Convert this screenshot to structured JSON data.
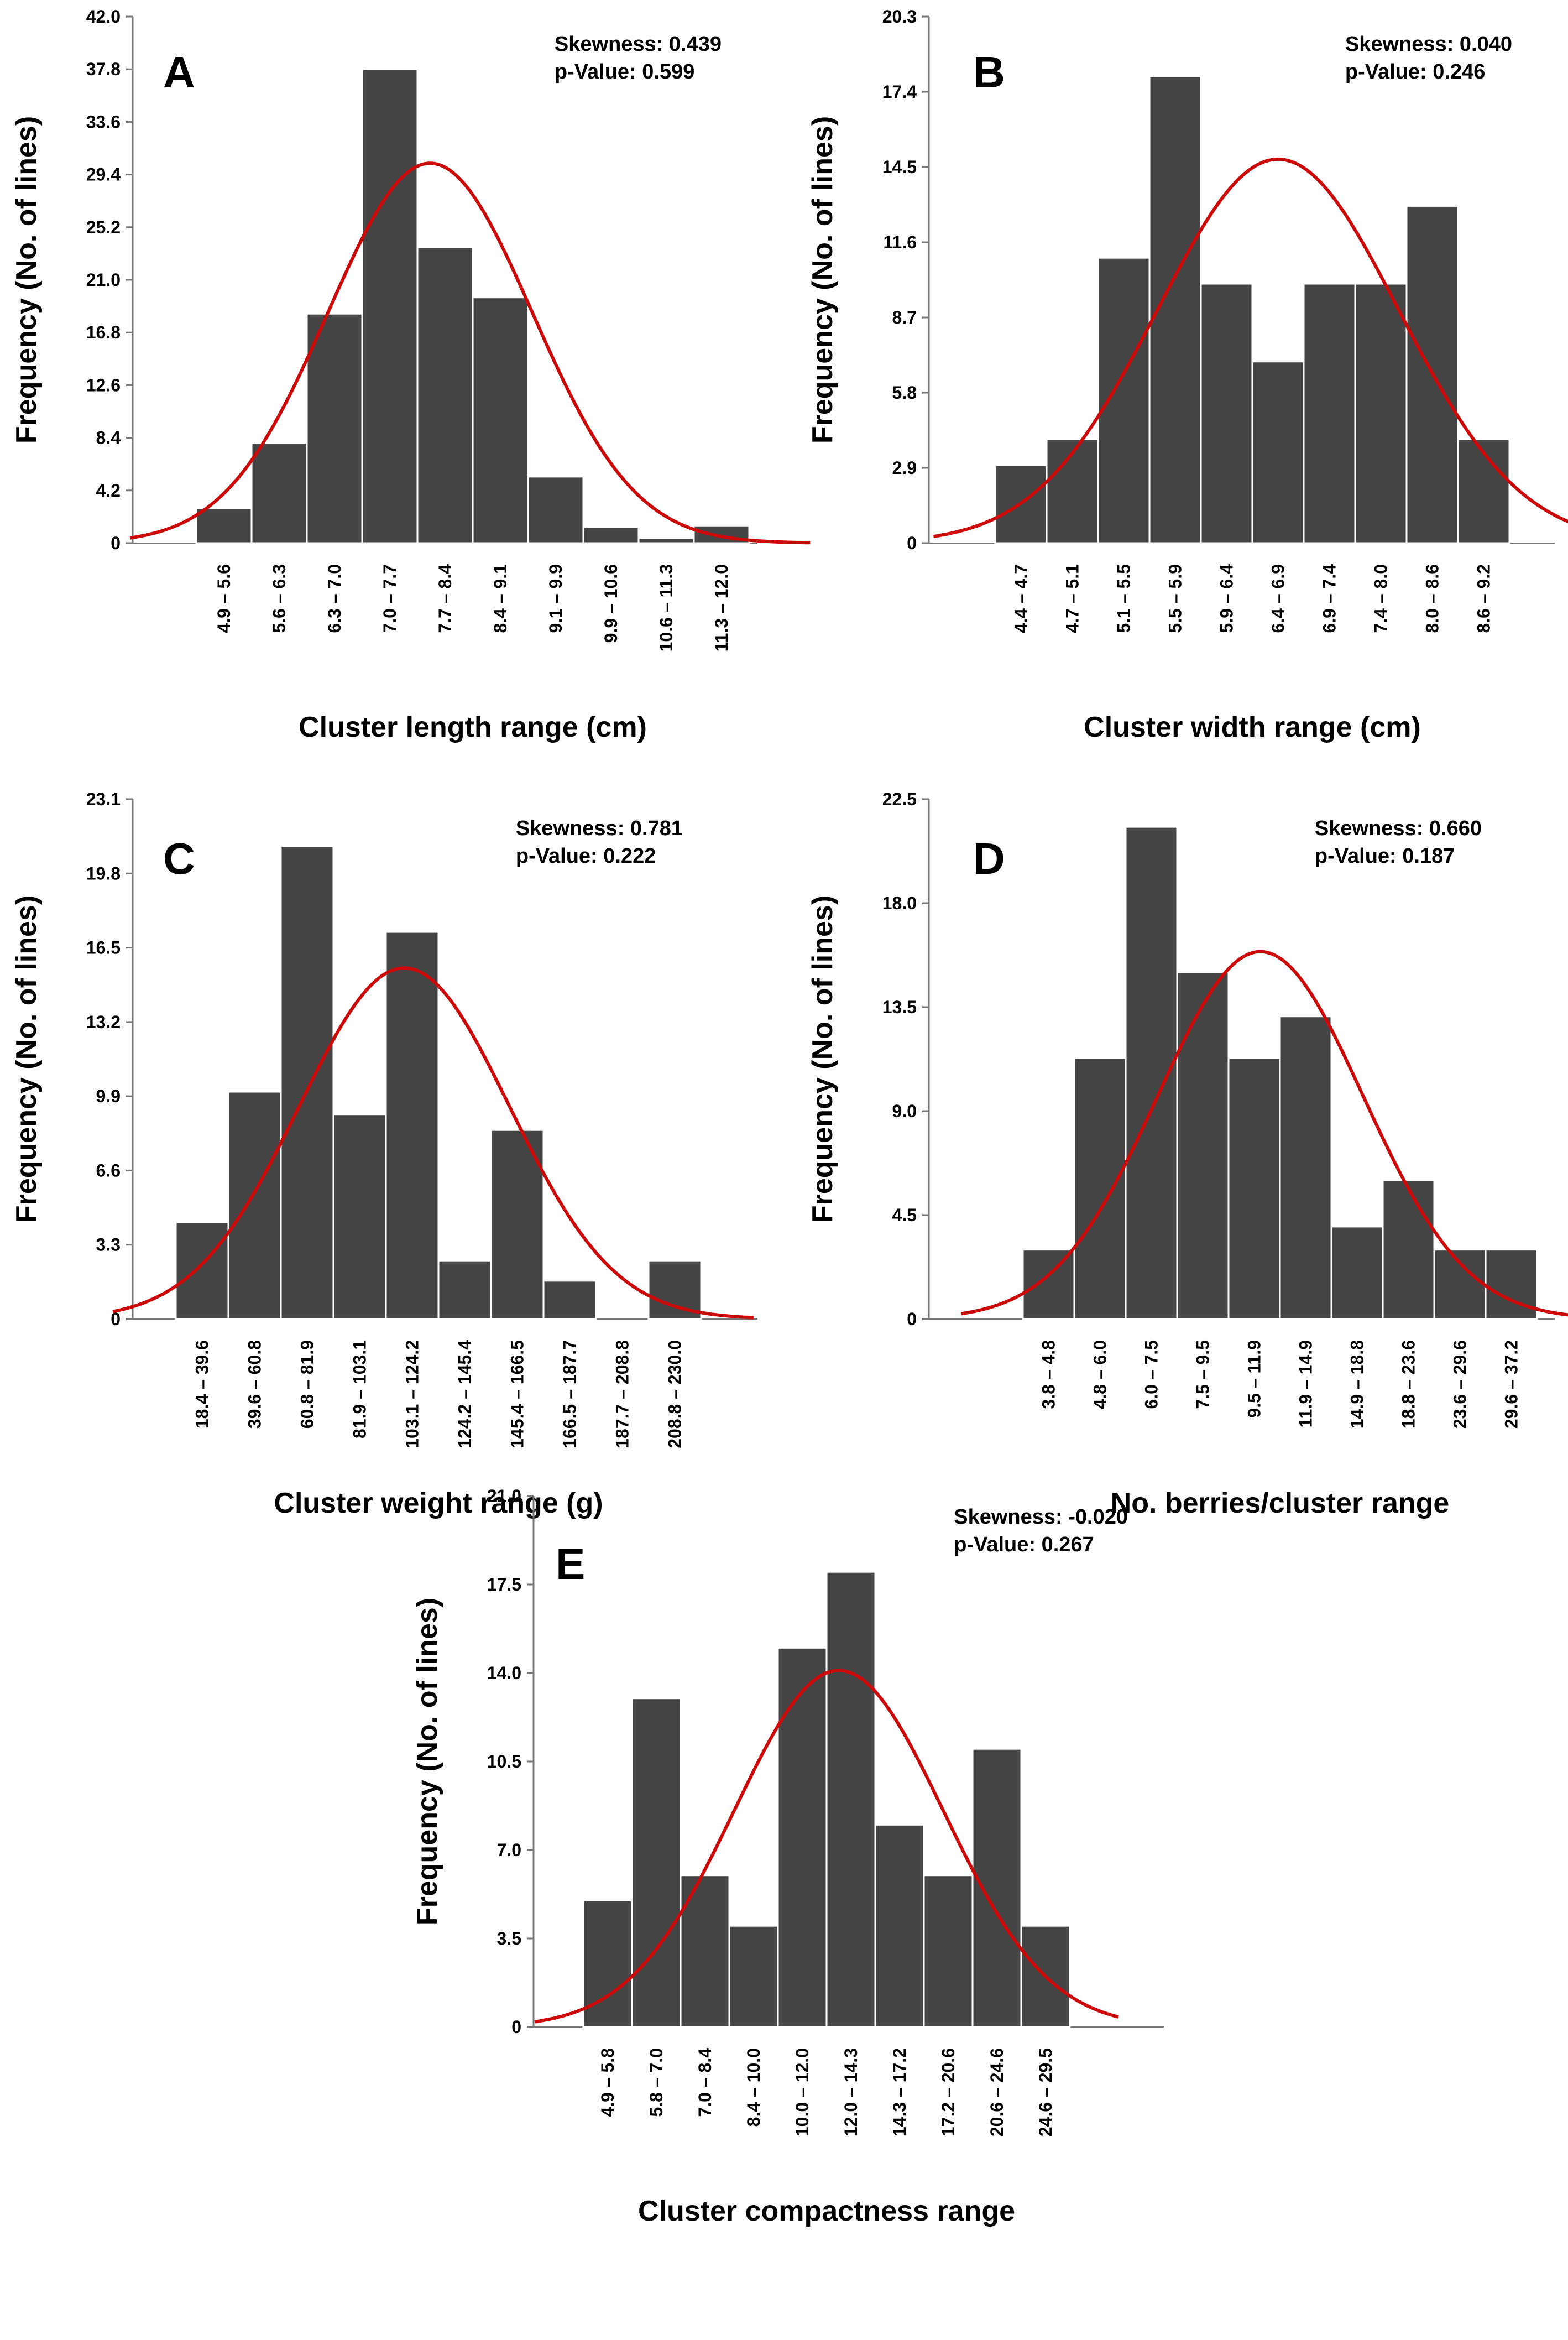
{
  "colors": {
    "bar": "#454545",
    "bar_edge": "#ffffff",
    "curve": "#cc0a0a",
    "axis": "#777777",
    "text": "#000000"
  },
  "chart_data": [
    {
      "panel": "A",
      "type": "bar",
      "title": "",
      "xlabel": "Cluster length range (cm)",
      "ylabel": "Frequency (No. of lines)",
      "ylim": [
        0,
        42.0
      ],
      "yticks": [
        "0",
        "4.2",
        "8.4",
        "12.6",
        "16.8",
        "21.0",
        "25.2",
        "29.4",
        "33.6",
        "37.8",
        "42.0"
      ],
      "categories": [
        "4.9 – 5.6",
        "5.6 – 6.3",
        "6.3 – 7.0",
        "7.0 – 7.7",
        "7.7 – 8.4",
        "8.4 – 9.1",
        "9.1 – 9.9",
        "9.9 – 10.6",
        "10.6 – 11.3",
        "11.3 – 12.0"
      ],
      "values": [
        2.8,
        8.0,
        18.3,
        37.8,
        23.6,
        19.6,
        5.3,
        1.3,
        0.4,
        1.4
      ],
      "skew_text": "Skewness: 0.439",
      "p_text": "p-Value: 0.599",
      "normal_fit": {
        "peak": 30.3,
        "mean_index": 3.73,
        "sd_index": 1.85,
        "extent": [
          -1.2,
          1.1
        ]
      }
    },
    {
      "panel": "B",
      "type": "bar",
      "title": "",
      "xlabel": "Cluster width range (cm)",
      "ylabel": "Frequency (No. of lines)",
      "ylim": [
        0,
        20.3
      ],
      "yticks": [
        "0",
        "2.9",
        "5.8",
        "8.7",
        "11.6",
        "14.5",
        "17.4",
        "20.3"
      ],
      "categories": [
        "4.4 – 4.7",
        "4.7 – 5.1",
        "5.1 – 5.5",
        "5.5 – 5.9",
        "5.9 – 6.4",
        "6.4 – 6.9",
        "6.9 – 7.4",
        "7.4 – 8.0",
        "8.0 – 8.6",
        "8.6 – 9.2"
      ],
      "values": [
        3.0,
        4.0,
        11.0,
        18.0,
        10.0,
        7.0,
        10.0,
        10.0,
        13.0,
        4.0
      ],
      "skew_text": "Skewness: 0.040",
      "p_text": "p-Value: 0.246",
      "normal_fit": {
        "peak": 14.8,
        "mean_index": 5.0,
        "sd_index": 2.35,
        "extent": [
          -1.2,
          1.2
        ]
      }
    },
    {
      "panel": "C",
      "type": "bar",
      "title": "",
      "xlabel": "Cluster weight range (g)",
      "ylabel": "Frequency (No. of lines)",
      "ylim": [
        0,
        23.1
      ],
      "yticks": [
        "0",
        "3.3",
        "6.6",
        "9.9",
        "13.2",
        "16.5",
        "19.8",
        "23.1"
      ],
      "categories": [
        "18.4 – 39.6",
        "39.6 – 60.8",
        "60.8 – 81.9",
        "81.9 – 103.1",
        "103.1 – 124.2",
        "124.2 – 145.4",
        "145.4 – 166.5",
        "166.5 – 187.7",
        "187.7 – 208.8",
        "208.8 – 230.0"
      ],
      "values": [
        4.3,
        10.1,
        21.0,
        9.1,
        17.2,
        2.6,
        8.4,
        1.7,
        0.0,
        2.6
      ],
      "skew_text": "Skewness: 0.781",
      "p_text": "p-Value: 0.222",
      "normal_fit": {
        "peak": 15.6,
        "mean_index": 3.85,
        "sd_index": 2.0,
        "extent": [
          -1.2,
          1.0
        ]
      }
    },
    {
      "panel": "D",
      "type": "bar",
      "title": "",
      "xlabel": "No. berries/cluster range",
      "ylabel": "Frequency (No. of lines)",
      "ylim": [
        0,
        22.5
      ],
      "yticks": [
        "0",
        "4.5",
        "9.0",
        "13.5",
        "18.0",
        "22.5"
      ],
      "categories": [
        "3.8 – 4.8",
        "4.8 – 6.0",
        "6.0 – 7.5",
        "7.5 – 9.5",
        "9.5 – 11.9",
        "11.9 – 14.9",
        "14.9 – 18.8",
        "18.8 – 23.6",
        "23.6 – 29.6",
        "29.6 – 37.2"
      ],
      "values": [
        3.0,
        11.3,
        21.3,
        15.0,
        11.3,
        13.1,
        4.0,
        6.0,
        3.0,
        3.0
      ],
      "skew_text": "Skewness: 0.660",
      "p_text": "p-Value: 0.187",
      "normal_fit": {
        "peak": 15.9,
        "mean_index": 4.12,
        "sd_index": 2.0,
        "extent": [
          -1.2,
          0.7
        ]
      }
    },
    {
      "panel": "E",
      "type": "bar",
      "title": "",
      "xlabel": "Cluster compactness range",
      "ylabel": "Frequency (No. of lines)",
      "ylim": [
        0,
        21.0
      ],
      "yticks": [
        "0",
        "3.5",
        "7.0",
        "10.5",
        "14.0",
        "17.5",
        "21.0"
      ],
      "categories": [
        "4.9 – 5.8",
        "5.8 – 7.0",
        "7.0 – 8.4",
        "8.4 – 10.0",
        "10.0 – 12.0",
        "12.0 – 14.3",
        "14.3 – 17.2",
        "17.2 – 20.6",
        "20.6 – 24.6",
        "24.6 – 29.5"
      ],
      "values": [
        5.0,
        13.0,
        6.0,
        4.0,
        15.0,
        18.0,
        8.0,
        6.0,
        11.0,
        4.0
      ],
      "skew_text": "Skewness: -0.020",
      "p_text": "p-Value: 0.267",
      "normal_fit": {
        "peak": 14.1,
        "mean_index": 4.75,
        "sd_index": 2.15,
        "extent": [
          -1.0,
          1.0
        ]
      }
    }
  ]
}
